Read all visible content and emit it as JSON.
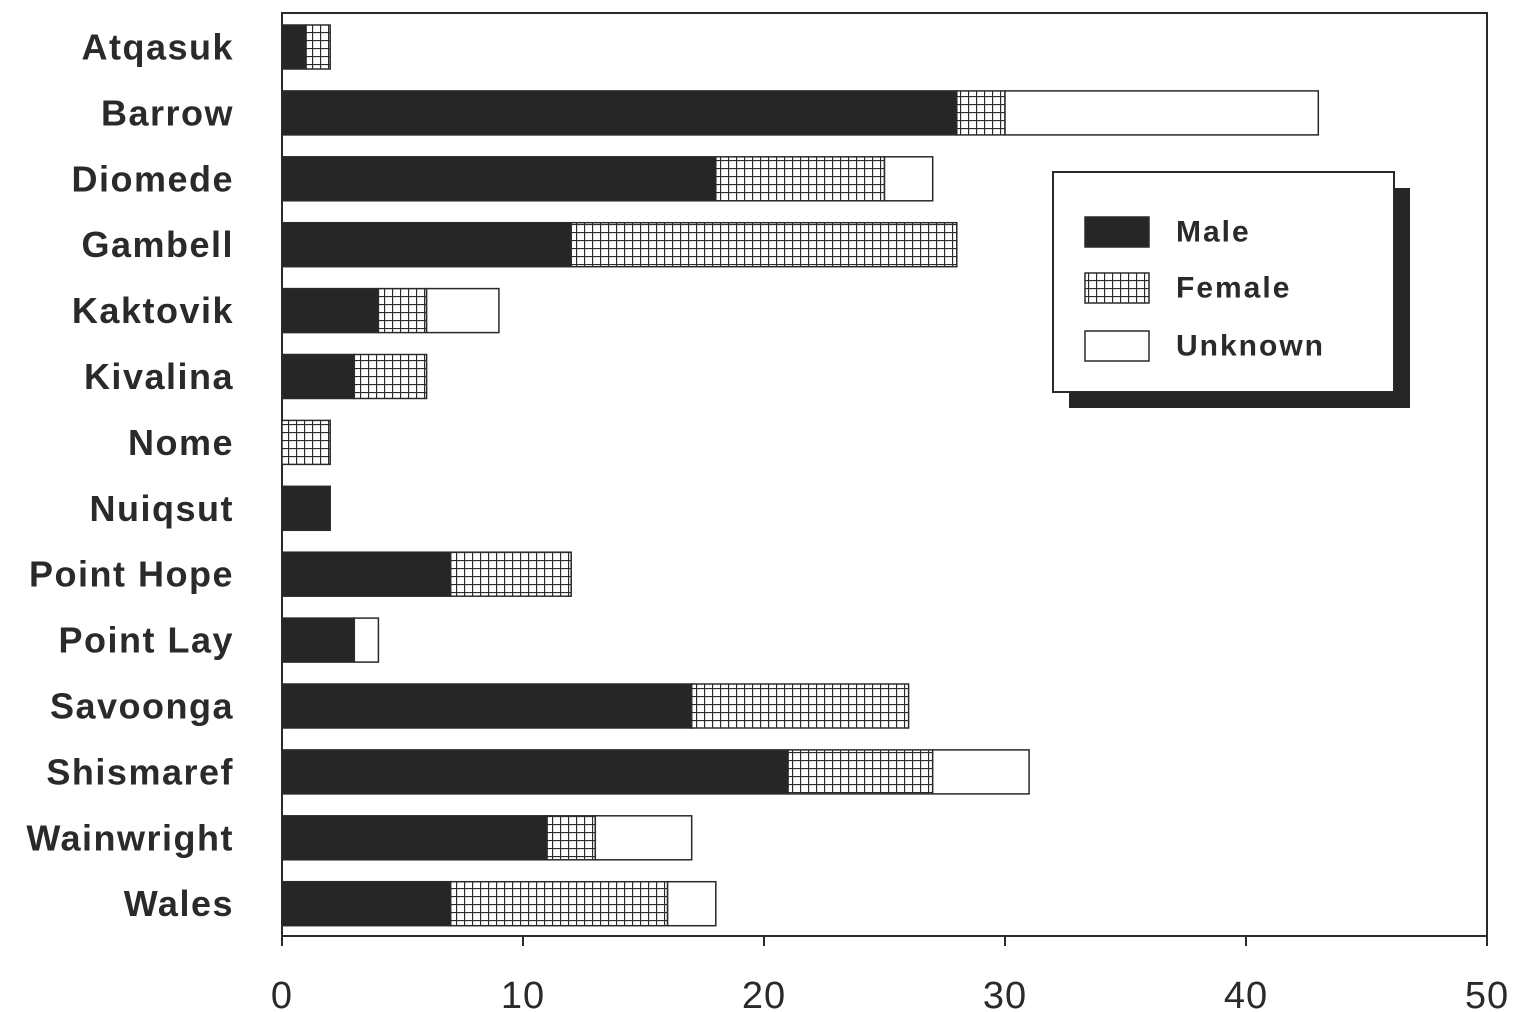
{
  "chart_data": {
    "type": "bar",
    "orientation": "horizontal",
    "stacked": true,
    "title": "",
    "xlabel": "",
    "ylabel": "",
    "xlim": [
      0,
      50
    ],
    "x_ticks": [
      0,
      10,
      20,
      30,
      40,
      50
    ],
    "grid": false,
    "legend_position": "top-right",
    "categories": [
      "Atqasuk",
      "Barrow",
      "Diomede",
      "Gambell",
      "Kaktovik",
      "Kivalina",
      "Nome",
      "Nuiqsut",
      "Point Hope",
      "Point Lay",
      "Savoonga",
      "Shismaref",
      "Wainwright",
      "Wales"
    ],
    "series": [
      {
        "name": "Male",
        "fill": "solid",
        "color": "#262626",
        "values": [
          1,
          28,
          18,
          12,
          4,
          3,
          0,
          2,
          7,
          3,
          17,
          21,
          11,
          7
        ]
      },
      {
        "name": "Female",
        "fill": "crosshatch",
        "color": "#ffffff",
        "values": [
          1,
          2,
          7,
          16,
          2,
          3,
          2,
          0,
          5,
          0,
          9,
          6,
          2,
          9
        ]
      },
      {
        "name": "Unknown",
        "fill": "white",
        "color": "#ffffff",
        "values": [
          0,
          13,
          2,
          0,
          3,
          0,
          0,
          0,
          0,
          1,
          0,
          4,
          4,
          2
        ]
      }
    ]
  }
}
